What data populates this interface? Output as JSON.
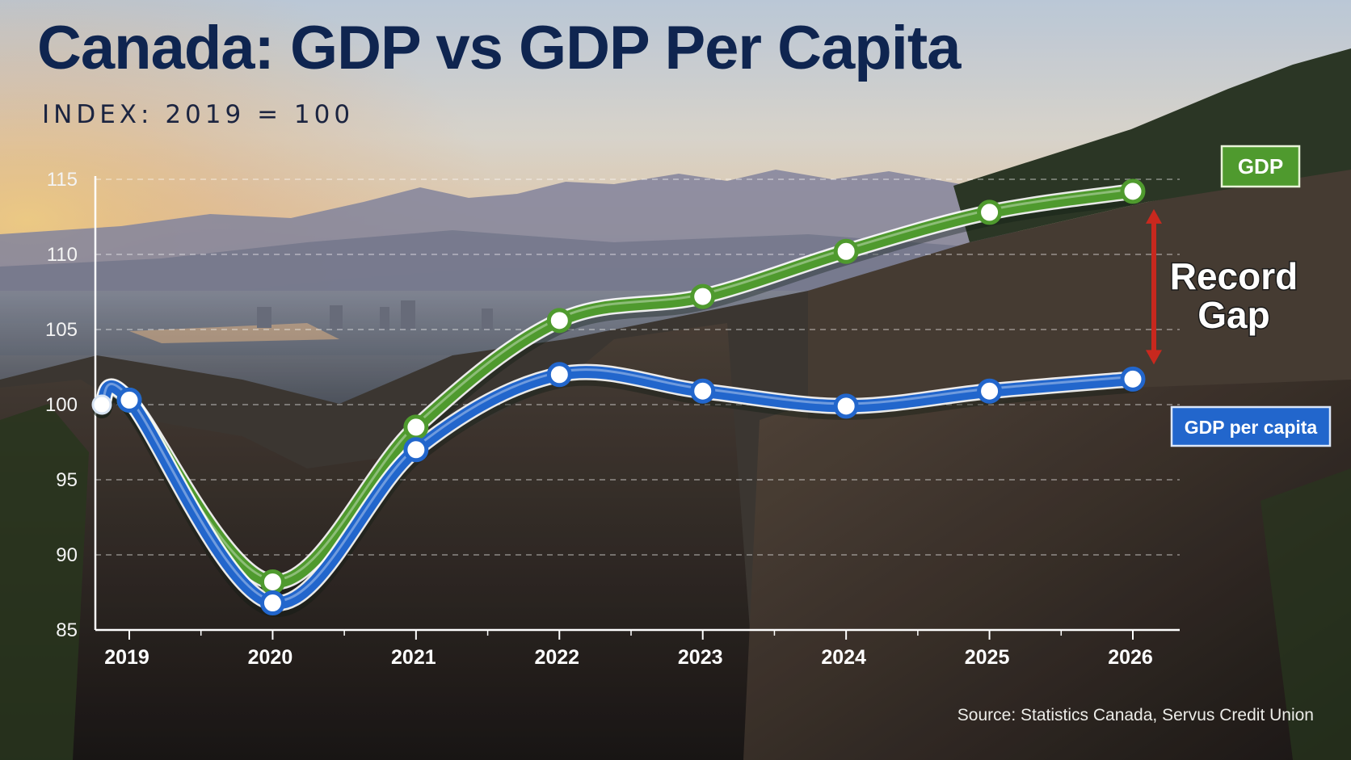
{
  "title": "Canada: GDP vs GDP Per Capita",
  "subtitle": "INDEX: 2019 = 100",
  "source": "Source: Statistics Canada, Servus Credit Union",
  "colors": {
    "gdp": "#4f9a2e",
    "gdp_per_capita": "#2266cc",
    "title": "#0f2550",
    "gap_arrow": "#c8281e"
  },
  "chart_data": {
    "type": "line",
    "title": "Canada: GDP vs GDP Per Capita",
    "subtitle": "INDEX: 2019 = 100",
    "x": [
      "2019",
      "2020",
      "2021",
      "2022",
      "2023",
      "2024",
      "2025",
      "2026"
    ],
    "ylim": [
      85,
      115
    ],
    "yticks": [
      85,
      90,
      95,
      100,
      105,
      110,
      115
    ],
    "grid": true,
    "series": [
      {
        "name": "GDP",
        "values": [
          100.3,
          88.2,
          98.5,
          105.6,
          107.2,
          110.2,
          112.8,
          114.2
        ]
      },
      {
        "name": "GDP per capita",
        "values": [
          100.3,
          86.8,
          97.0,
          102.0,
          100.9,
          99.9,
          100.9,
          101.7
        ]
      }
    ],
    "annotations": [
      {
        "text": "Record Gap",
        "lines": [
          "Record",
          "Gap"
        ],
        "x": "2026"
      }
    ]
  }
}
